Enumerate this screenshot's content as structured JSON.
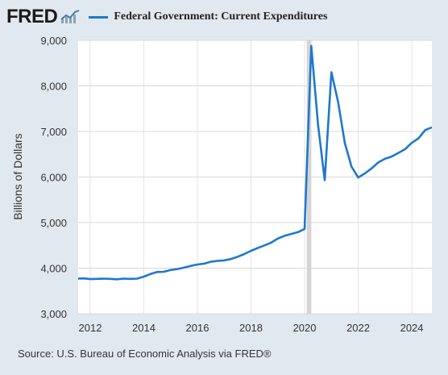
{
  "header": {
    "logo_text": "FRED",
    "series_name": "Federal Government: Current Expenditures"
  },
  "footer": {
    "source": "Source: U.S. Bureau of Economic Analysis via FRED®"
  },
  "colors": {
    "series": "#1f77d0",
    "background": "#e1e9f0",
    "plot_background": "#ffffff",
    "recession": "#d4d4d4"
  },
  "chart_data": {
    "type": "line",
    "title": "",
    "xlabel": "",
    "ylabel": "Billions of Dollars",
    "xlim": [
      2011.55,
      2024.75
    ],
    "ylim": [
      3000,
      9000
    ],
    "yticks": [
      3000,
      4000,
      5000,
      6000,
      7000,
      8000,
      9000
    ],
    "ytick_labels": [
      "3,000",
      "4,000",
      "5,000",
      "6,000",
      "7,000",
      "8,000",
      "9,000"
    ],
    "xticks": [
      2012,
      2014,
      2016,
      2018,
      2020,
      2022,
      2024
    ],
    "xtick_labels": [
      "2012",
      "2014",
      "2016",
      "2018",
      "2020",
      "2022",
      "2024"
    ],
    "grid": true,
    "recession": [
      2020.08,
      2020.25
    ],
    "series": [
      {
        "name": "Federal Government: Current Expenditures",
        "x": [
          2011.5,
          2011.75,
          2012.0,
          2012.25,
          2012.5,
          2012.75,
          2013.0,
          2013.25,
          2013.5,
          2013.75,
          2014.0,
          2014.25,
          2014.5,
          2014.75,
          2015.0,
          2015.25,
          2015.5,
          2015.75,
          2016.0,
          2016.25,
          2016.5,
          2016.75,
          2017.0,
          2017.25,
          2017.5,
          2017.75,
          2018.0,
          2018.25,
          2018.5,
          2018.75,
          2019.0,
          2019.25,
          2019.5,
          2019.75,
          2020.0,
          2020.25,
          2020.5,
          2020.75,
          2021.0,
          2021.25,
          2021.5,
          2021.75,
          2022.0,
          2022.25,
          2022.5,
          2022.75,
          2023.0,
          2023.25,
          2023.5,
          2023.75,
          2024.0,
          2024.25,
          2024.5,
          2024.75
        ],
        "values": [
          3770,
          3775,
          3760,
          3765,
          3770,
          3765,
          3755,
          3770,
          3765,
          3770,
          3815,
          3870,
          3915,
          3920,
          3960,
          3980,
          4010,
          4050,
          4080,
          4100,
          4140,
          4160,
          4170,
          4200,
          4250,
          4310,
          4380,
          4440,
          4500,
          4560,
          4650,
          4710,
          4750,
          4790,
          4860,
          8880,
          7150,
          5930,
          8300,
          7650,
          6750,
          6230,
          5990,
          6080,
          6190,
          6320,
          6400,
          6450,
          6530,
          6610,
          6750,
          6850,
          7030,
          7090
        ]
      }
    ]
  }
}
